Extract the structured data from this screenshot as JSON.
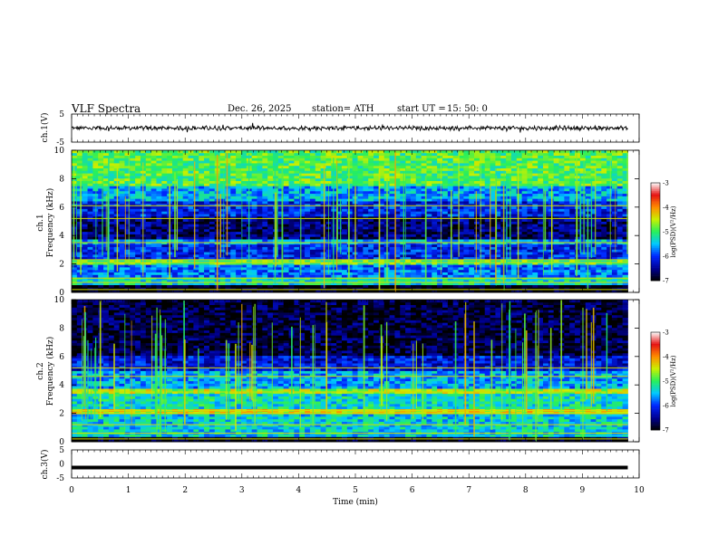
{
  "header": {
    "title": "VLF  Spectra",
    "date": "Dec. 26, 2025",
    "station": "station= ATH",
    "start_label": "start  UT  =",
    "start_time": "15: 50: 0"
  },
  "chart_data": [
    {
      "type": "line",
      "panel": "ch1-waveform",
      "ylabel": "ch.1(V)",
      "ylim": [
        -5,
        5
      ],
      "yticks": [
        "5",
        "-5"
      ],
      "xlim": [
        0,
        10
      ],
      "x_end": 9.8,
      "level": 0,
      "color": "#000000"
    },
    {
      "type": "heatmap",
      "panel": "ch1-spectrogram",
      "ylabel": "ch.1\nFrequency  (kHz)",
      "ylim": [
        0,
        10
      ],
      "yticks": [
        "0",
        "2",
        "4",
        "6",
        "8",
        "10"
      ],
      "xlim": [
        0,
        10
      ],
      "x_end": 9.8,
      "colorbar": {
        "label": "log(PSD)(V²/Hz)",
        "ticks": [
          "-3",
          "-4",
          "-5",
          "-6",
          "-7"
        ],
        "range": [
          -7,
          -3
        ]
      },
      "bands": [
        {
          "f": [
            0.0,
            0.5
          ],
          "level": -7.0
        },
        {
          "f": [
            0.5,
            1.1
          ],
          "level": -5.3
        },
        {
          "f": [
            1.1,
            2.0
          ],
          "level": -5.8
        },
        {
          "f": [
            2.0,
            2.4
          ],
          "level": -4.9
        },
        {
          "f": [
            2.4,
            3.4
          ],
          "level": -6.1
        },
        {
          "f": [
            3.4,
            3.7
          ],
          "level": -5.6
        },
        {
          "f": [
            3.7,
            5.3
          ],
          "level": -6.6
        },
        {
          "f": [
            5.3,
            6.4
          ],
          "level": -6.1
        },
        {
          "f": [
            6.4,
            7.5
          ],
          "level": -5.6
        },
        {
          "f": [
            7.5,
            10.0
          ],
          "level": -4.9
        }
      ],
      "lines_khz": [
        0.2,
        0.7,
        1.0,
        2.1,
        2.3,
        3.5,
        5.2,
        6.1
      ]
    },
    {
      "type": "heatmap",
      "panel": "ch2-spectrogram",
      "ylabel": "ch.2\nFrequency  (kHz)",
      "ylim": [
        0,
        10
      ],
      "yticks": [
        "0",
        "2",
        "4",
        "6",
        "8",
        "10"
      ],
      "xlim": [
        0,
        10
      ],
      "x_end": 9.8,
      "colorbar": {
        "label": "log(PSD)(V²/Hz)",
        "ticks": [
          "-3",
          "-4",
          "-5",
          "-6",
          "-7"
        ],
        "range": [
          -7,
          -3
        ]
      },
      "bands": [
        {
          "f": [
            0.0,
            0.3
          ],
          "level": -7.0
        },
        {
          "f": [
            0.3,
            2.0
          ],
          "level": -5.4
        },
        {
          "f": [
            2.0,
            2.3
          ],
          "level": -4.4
        },
        {
          "f": [
            2.3,
            3.4
          ],
          "level": -5.3
        },
        {
          "f": [
            3.4,
            3.7
          ],
          "level": -4.6
        },
        {
          "f": [
            3.7,
            5.0
          ],
          "level": -5.6
        },
        {
          "f": [
            5.0,
            6.0
          ],
          "level": -6.2
        },
        {
          "f": [
            6.0,
            10.0
          ],
          "level": -6.8
        }
      ],
      "lines_khz": [
        0.2,
        0.6,
        1.2,
        2.0,
        2.2,
        3.5,
        4.6,
        5.2
      ]
    },
    {
      "type": "line",
      "panel": "ch3-waveform",
      "ylabel": "ch.3(V)",
      "ylim": [
        -5,
        5
      ],
      "yticks": [
        "5",
        "0",
        "-5"
      ],
      "xlim": [
        0,
        10
      ],
      "x_end": 9.8,
      "level": -1.3,
      "color": "#000000"
    }
  ],
  "xaxis": {
    "label": "Time  (min)",
    "ticks": [
      "0",
      "1",
      "2",
      "3",
      "4",
      "5",
      "6",
      "7",
      "8",
      "9",
      "10"
    ]
  }
}
